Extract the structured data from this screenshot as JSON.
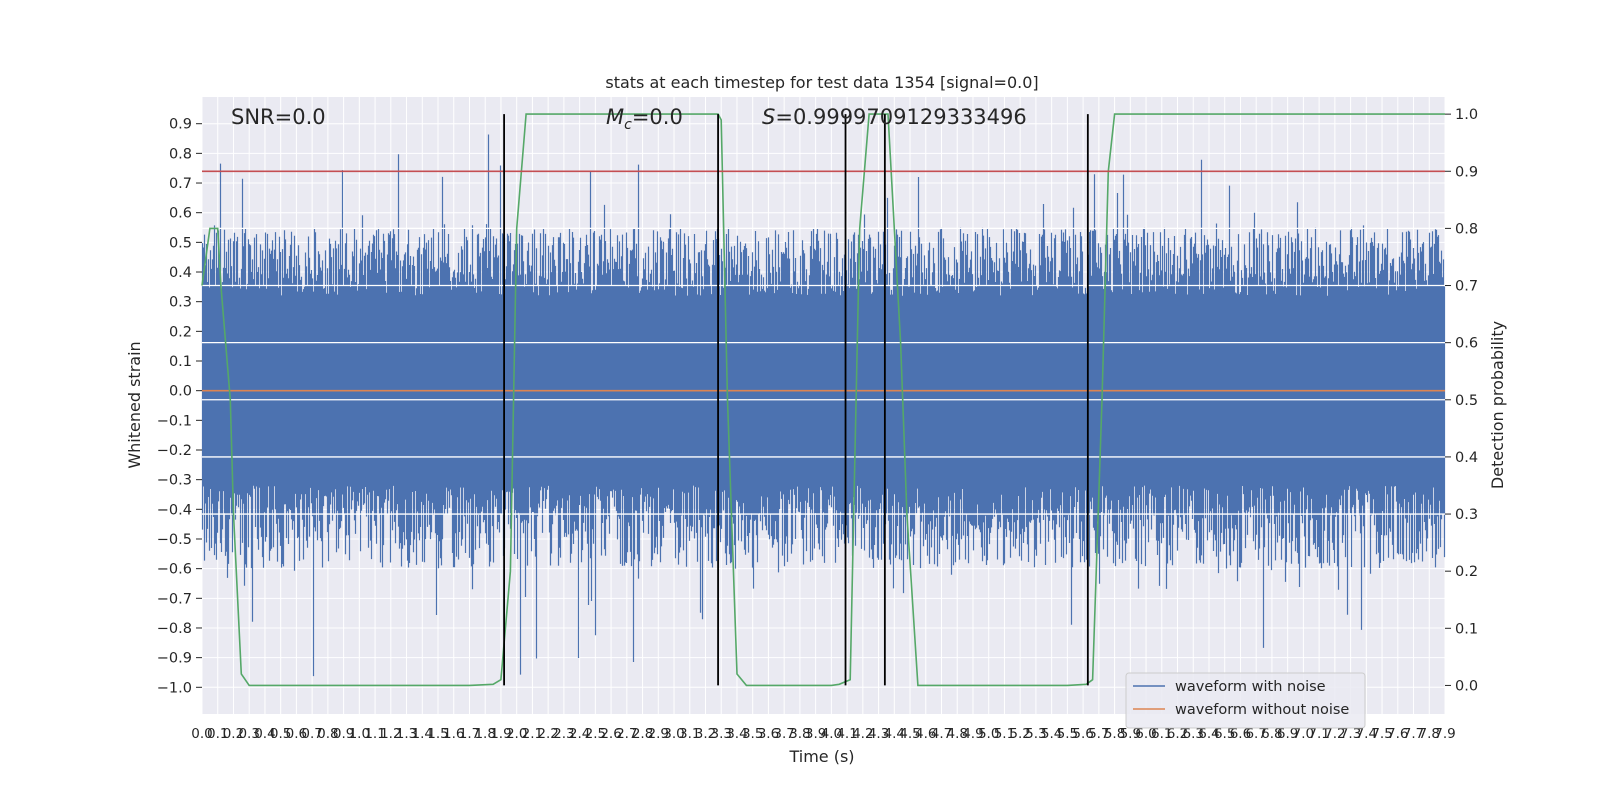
{
  "chart_data": {
    "type": "line",
    "title": "stats at each timestep for test data 1354 [signal=0.0]",
    "xlabel": "Time (s)",
    "ylabel_left": "Whitened strain",
    "ylabel_right": "Detection probability",
    "xlim": [
      0.0,
      7.9
    ],
    "ylim_left": [
      -1.09,
      0.99
    ],
    "ylim_right": [
      -0.05,
      1.03
    ],
    "x_ticks": [
      "0.0",
      "0.1",
      "0.2",
      "0.3",
      "0.4",
      "0.5",
      "0.6",
      "0.7",
      "0.8",
      "0.9",
      "1.0",
      "1.1",
      "1.2",
      "1.3",
      "1.4",
      "1.5",
      "1.6",
      "1.7",
      "1.8",
      "1.9",
      "2.0",
      "2.1",
      "2.2",
      "2.3",
      "2.4",
      "2.5",
      "2.6",
      "2.7",
      "2.8",
      "2.9",
      "3.0",
      "3.1",
      "3.2",
      "3.3",
      "3.4",
      "3.5",
      "3.6",
      "3.7",
      "3.8",
      "3.9",
      "4.0",
      "4.1",
      "4.2",
      "4.3",
      "4.4",
      "4.5",
      "4.6",
      "4.7",
      "4.8",
      "4.9",
      "5.0",
      "5.1",
      "5.2",
      "5.3",
      "5.4",
      "5.5",
      "5.6",
      "5.7",
      "5.8",
      "5.9",
      "6.0",
      "6.1",
      "6.2",
      "6.3",
      "6.4",
      "6.5",
      "6.6",
      "6.7",
      "6.8",
      "6.9",
      "7.0",
      "7.1",
      "7.2",
      "7.3",
      "7.4",
      "7.5",
      "7.6",
      "7.7",
      "7.8",
      "7.9"
    ],
    "y_ticks_left": [
      "−1.0",
      "−0.9",
      "−0.8",
      "−0.7",
      "−0.6",
      "−0.5",
      "−0.4",
      "−0.3",
      "−0.2",
      "−0.1",
      "0.0",
      "0.1",
      "0.2",
      "0.3",
      "0.4",
      "0.5",
      "0.6",
      "0.7",
      "0.8",
      "0.9"
    ],
    "y_ticks_right": [
      "0.0",
      "0.1",
      "0.2",
      "0.3",
      "0.4",
      "0.5",
      "0.6",
      "0.7",
      "0.8",
      "0.9",
      "1.0"
    ],
    "annotations": {
      "snr": "SNR=0.0",
      "mc": "=0.0",
      "mc_symbol": "M",
      "mc_sub": "c",
      "s": "=0.9999709129333496",
      "s_symbol": "S"
    },
    "series": [
      {
        "name": "waveform with noise",
        "color": "#4c72b0",
        "axis": "left",
        "kind": "noise",
        "core_amplitude": 0.32,
        "typical_peak": 0.55,
        "max_peak": 0.9,
        "min_trough": -1.0
      },
      {
        "name": "waveform without noise",
        "color": "#dd8452",
        "axis": "left",
        "x": [
          0.0,
          7.9
        ],
        "y": [
          0.0,
          0.0
        ]
      },
      {
        "color": "#55a868",
        "axis": "right",
        "x": [
          0.0,
          0.05,
          0.1,
          0.12,
          0.18,
          0.2,
          0.25,
          0.3,
          0.35,
          0.4,
          0.5,
          1.0,
          1.5,
          1.7,
          1.85,
          1.9,
          1.96,
          2.0,
          2.06,
          3.0,
          3.2,
          3.28,
          3.3,
          3.34,
          3.4,
          3.46,
          3.5,
          4.0,
          4.05,
          4.12,
          4.18,
          4.24,
          4.3,
          4.36,
          4.44,
          4.48,
          4.55,
          4.6,
          5.0,
          5.5,
          5.62,
          5.66,
          5.72,
          5.76,
          5.8,
          6.0,
          7.0,
          7.9
        ],
        "y": [
          0.7,
          0.8,
          0.8,
          0.7,
          0.5,
          0.3,
          0.02,
          0.0,
          0.0,
          0.0,
          0.0,
          0.0,
          0.0,
          0.0,
          0.002,
          0.01,
          0.2,
          0.8,
          1.0,
          1.0,
          1.0,
          1.0,
          0.99,
          0.5,
          0.02,
          0.0,
          0.0,
          0.0,
          0.002,
          0.01,
          0.8,
          1.0,
          1.0,
          1.0,
          0.6,
          0.3,
          0.0,
          0.0,
          0.0,
          0.0,
          0.002,
          0.01,
          0.5,
          0.9,
          1.0,
          1.0,
          1.0,
          1.0
        ]
      },
      {
        "color": "#c44e52",
        "axis": "right",
        "x": [
          0.0,
          7.9
        ],
        "y": [
          0.9,
          0.9
        ]
      }
    ],
    "vertical_lines_x": [
      1.92,
      3.28,
      4.09,
      4.34,
      5.63
    ],
    "vertical_line_color": "#000000",
    "white_hlines_right": [
      0.3,
      0.4,
      0.5,
      0.6,
      0.7,
      0.8
    ],
    "grid": true,
    "legend_position": "lower right",
    "colors": {
      "plot_bg": "#eaeaf2",
      "grid": "#ffffff",
      "text": "#262626"
    }
  }
}
